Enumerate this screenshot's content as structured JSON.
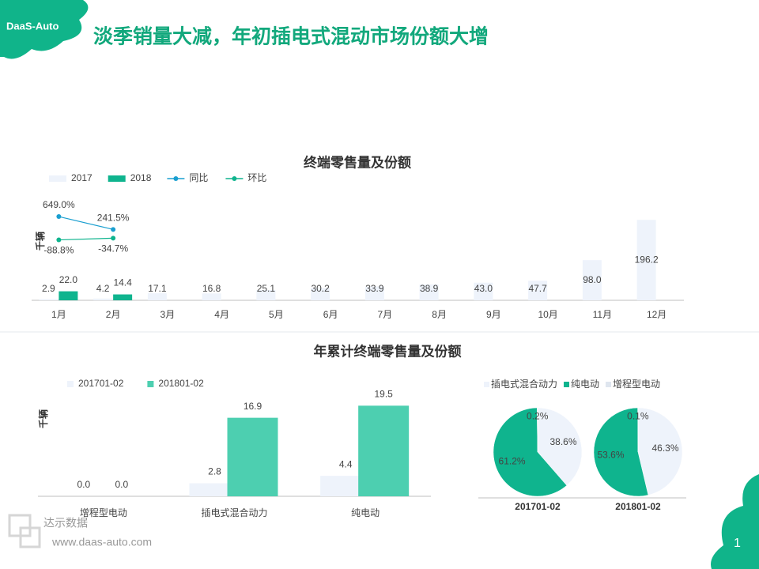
{
  "header": {
    "logo": "DaaS-Auto",
    "title": "淡季销量大减，年初插电式混动市场份额大增"
  },
  "footer": {
    "brand": "达示数据",
    "url": "www.daas-auto.com",
    "page": "1"
  },
  "chart_data": [
    {
      "type": "bar",
      "title": "终端零售量及份额",
      "y_label": "千辆",
      "categories": [
        "1月",
        "2月",
        "3月",
        "4月",
        "5月",
        "6月",
        "7月",
        "8月",
        "9月",
        "10月",
        "11月",
        "12月"
      ],
      "ylim": [
        0,
        270
      ],
      "y2lim": [
        -2000,
        1500
      ],
      "series": [
        {
          "name": "2017",
          "type": "bar",
          "color": "#eef3fb",
          "values": [
            2.9,
            4.2,
            17.1,
            16.8,
            25.1,
            30.2,
            33.9,
            38.9,
            43.0,
            47.7,
            98.0,
            196.2
          ],
          "value_labels": [
            "2.9",
            "4.2",
            "17.1",
            "16.8",
            "25.1",
            "30.2",
            "33.9",
            "38.9",
            "43.0",
            "47.7",
            "98.0",
            "196.2"
          ]
        },
        {
          "name": "2018",
          "type": "bar",
          "color": "#0fb48e",
          "values": [
            22.0,
            14.4,
            null,
            null,
            null,
            null,
            null,
            null,
            null,
            null,
            null,
            null
          ],
          "value_labels": [
            "22.0",
            "14.4",
            null,
            null,
            null,
            null,
            null,
            null,
            null,
            null,
            null,
            null
          ]
        },
        {
          "name": "同比",
          "type": "line",
          "axis": "y2",
          "color": "#1a9fd0",
          "values": [
            649.0,
            241.5,
            null,
            null,
            null,
            null,
            null,
            null,
            null,
            null,
            null,
            null
          ],
          "value_labels": [
            "649.0%",
            "241.5%",
            null,
            null,
            null,
            null,
            null,
            null,
            null,
            null,
            null,
            null
          ]
        },
        {
          "name": "环比",
          "type": "line",
          "axis": "y2",
          "color": "#0fb48e",
          "values": [
            -88.8,
            -34.7,
            null,
            null,
            null,
            null,
            null,
            null,
            null,
            null,
            null,
            null
          ],
          "value_labels": [
            "-88.8%",
            "-34.7%",
            null,
            null,
            null,
            null,
            null,
            null,
            null,
            null,
            null,
            null
          ]
        }
      ]
    },
    {
      "type": "bar",
      "title": "年累计终端零售量及份额",
      "y_label": "千辆",
      "categories": [
        "增程型电动",
        "插电式混合动力",
        "纯电动"
      ],
      "ylim": [
        0,
        25
      ],
      "series": [
        {
          "name": "201701-02",
          "type": "bar",
          "color": "#eef3fb",
          "values": [
            0.0,
            2.8,
            4.4
          ],
          "value_labels": [
            "0.0",
            "2.8",
            "4.4"
          ]
        },
        {
          "name": "201801-02",
          "type": "bar",
          "color": "#4dcfb0",
          "values": [
            0.0,
            16.9,
            19.5
          ],
          "value_labels": [
            "0.0",
            "16.9",
            "19.5"
          ]
        }
      ]
    },
    {
      "type": "pie",
      "categories": [
        "插电式混合动力",
        "纯电动",
        "增程型电动"
      ],
      "colors": [
        "#eef3fb",
        "#0fb48e",
        "#dfe6ef"
      ],
      "series": [
        {
          "name": "201701-02",
          "values": [
            38.6,
            61.2,
            0.2
          ],
          "value_labels": [
            "38.6%",
            "61.2%",
            "0.2%"
          ]
        },
        {
          "name": "201801-02",
          "values": [
            46.3,
            53.6,
            0.1
          ],
          "value_labels": [
            "46.3%",
            "53.6%",
            "0.1%"
          ]
        }
      ]
    }
  ]
}
